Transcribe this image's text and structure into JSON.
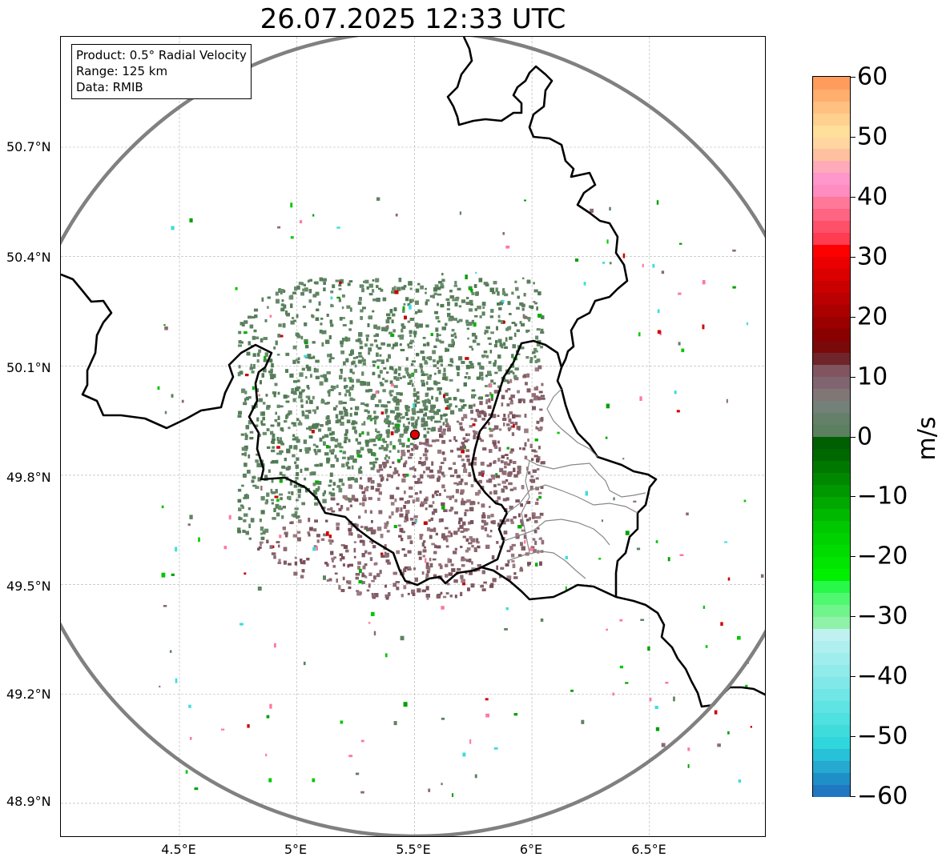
{
  "title": "26.07.2025 12:33 UTC",
  "info": {
    "product": "Product: 0.5° Radial Velocity",
    "range": "Range: 125 km",
    "data": "Data: RMIB"
  },
  "map": {
    "lon_ticks": [
      "4.5°E",
      "5°E",
      "5.5°E",
      "6°E",
      "6.5°E"
    ],
    "lat_ticks": [
      "50.7°N",
      "50.4°N",
      "50.1°N",
      "49.8°N",
      "49.5°N",
      "49.2°N",
      "48.9°N"
    ],
    "radar_site": {
      "lon": 5.505,
      "lat": 49.915
    },
    "range_ring_color": "#808080",
    "border_color": "#000000"
  },
  "colorbar": {
    "unit": "m/s",
    "tick_labels": [
      "60",
      "50",
      "40",
      "30",
      "20",
      "10",
      "0",
      "−10",
      "−20",
      "−30",
      "−40",
      "−50",
      "−60"
    ],
    "min": -60,
    "max": 60,
    "colors": [
      "#1f78c1",
      "#1f8fc8",
      "#25a9d0",
      "#27c2d7",
      "#2fd7dc",
      "#3fdcdc",
      "#4fe0e0",
      "#5fe3e3",
      "#70e6e6",
      "#80e8e8",
      "#90ebeb",
      "#a0eded",
      "#b0efef",
      "#bff1f1",
      "#8ff2a8",
      "#6ff58b",
      "#4ff86e",
      "#27f84a",
      "#00f000",
      "#00e600",
      "#00dc00",
      "#00d200",
      "#00c800",
      "#00b800",
      "#00a800",
      "#009800",
      "#008800",
      "#007800",
      "#006800",
      "#005f00",
      "#5a8060",
      "#648068",
      "#74807a",
      "#807676",
      "#806570",
      "#805560",
      "#70252a",
      "#7a0a0a",
      "#8a0000",
      "#9a0000",
      "#aa0000",
      "#ba0000",
      "#ca0000",
      "#da0000",
      "#ea0000",
      "#ff0000",
      "#ff3c50",
      "#ff506a",
      "#ff6482",
      "#ff7898",
      "#ff8cc0",
      "#ff96cc",
      "#ffaab8",
      "#ffc0a0",
      "#ffd6a0",
      "#ffe09a",
      "#ffd090",
      "#ffc080",
      "#ffae6e",
      "#ff9c5c"
    ]
  }
}
